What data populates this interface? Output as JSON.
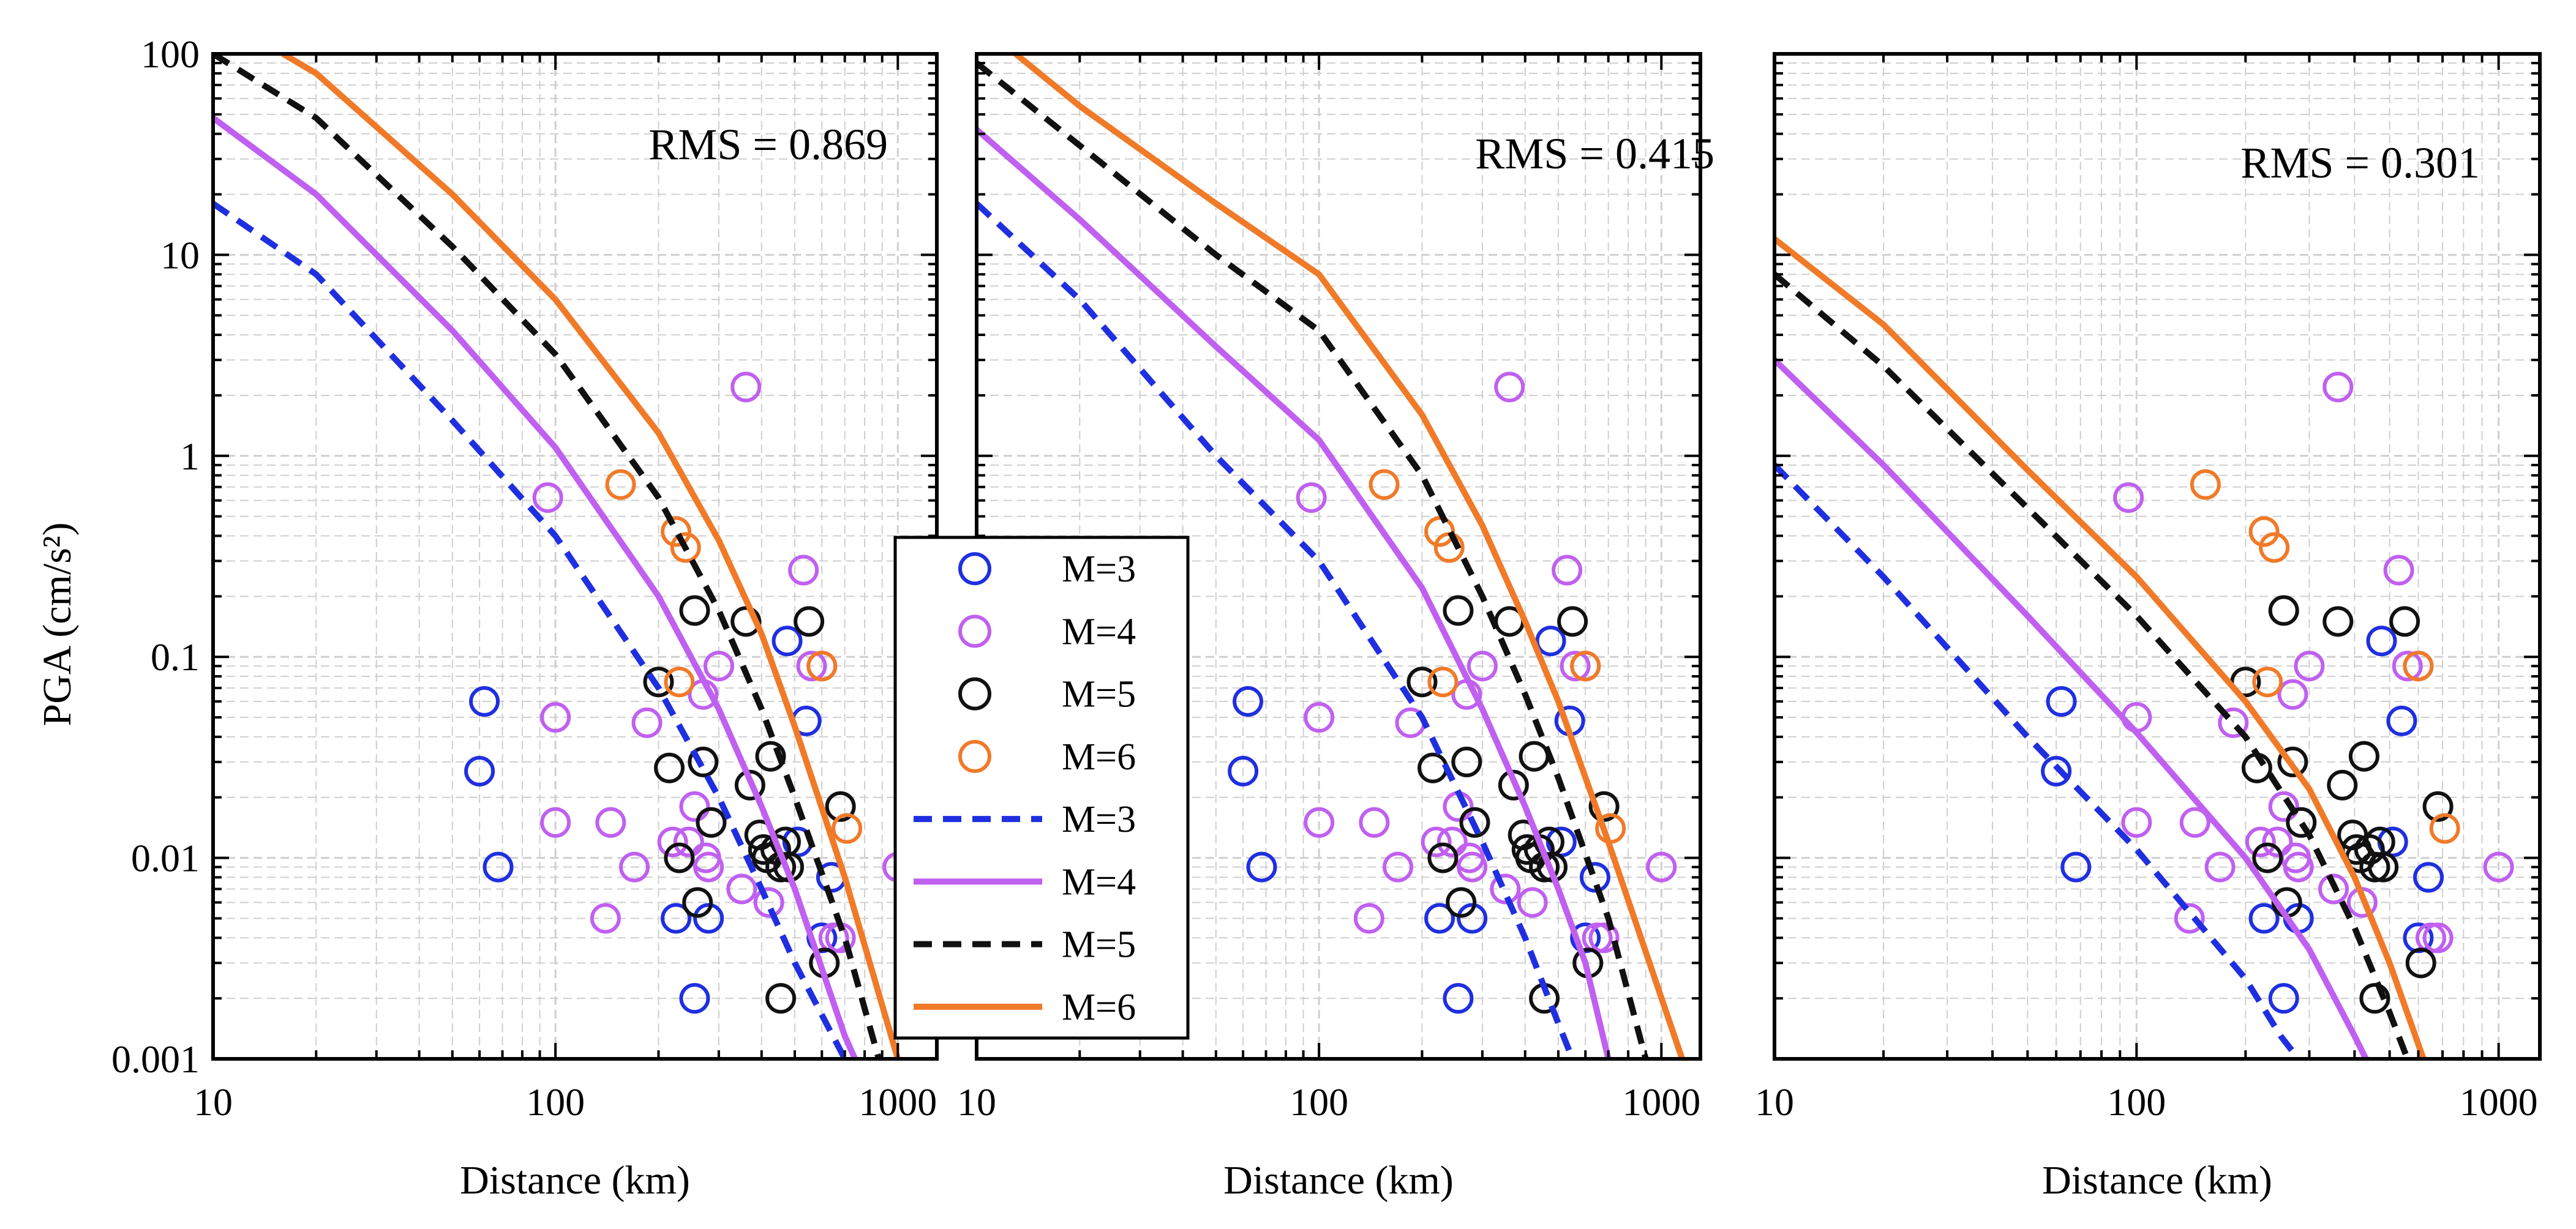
{
  "chart_data": {
    "type": "scatter",
    "figure": {
      "ylabel": "PGA (cm/s²)",
      "xlabel": "Distance (km)"
    },
    "colors": {
      "M3": "#1f2fe0",
      "M4": "#c060f0",
      "M5": "#111111",
      "M6": "#f07a28"
    },
    "legend": {
      "position": "between-panels-bottom",
      "entries": [
        {
          "label": "M=3",
          "marker": "circle",
          "series": "M3"
        },
        {
          "label": "M=4",
          "marker": "circle",
          "series": "M4"
        },
        {
          "label": "M=5",
          "marker": "circle",
          "series": "M5"
        },
        {
          "label": "M=6",
          "marker": "circle",
          "series": "M6"
        },
        {
          "label": "M=3",
          "marker": "dashed-line",
          "series": "M3"
        },
        {
          "label": "M=4",
          "marker": "solid-line",
          "series": "M4"
        },
        {
          "label": "M=5",
          "marker": "dashed-line",
          "series": "M5"
        },
        {
          "label": "M=6",
          "marker": "solid-line",
          "series": "M6"
        }
      ]
    },
    "observations": {
      "M3": [
        [
          62,
          0.06
        ],
        [
          60,
          0.027
        ],
        [
          68,
          0.009
        ],
        [
          225,
          0.005
        ],
        [
          255,
          0.002
        ],
        [
          280,
          0.005
        ],
        [
          475,
          0.12
        ],
        [
          510,
          0.012
        ],
        [
          540,
          0.048
        ],
        [
          600,
          0.004
        ],
        [
          640,
          0.008
        ]
      ],
      "M4": [
        [
          95,
          0.62
        ],
        [
          100,
          0.05
        ],
        [
          100,
          0.015
        ],
        [
          140,
          0.005
        ],
        [
          145,
          0.015
        ],
        [
          170,
          0.009
        ],
        [
          185,
          0.047
        ],
        [
          220,
          0.012
        ],
        [
          245,
          0.012
        ],
        [
          255,
          0.018
        ],
        [
          270,
          0.065
        ],
        [
          275,
          0.01
        ],
        [
          280,
          0.009
        ],
        [
          300,
          0.09
        ],
        [
          350,
          0.007
        ],
        [
          360,
          2.2
        ],
        [
          420,
          0.006
        ],
        [
          530,
          0.27
        ],
        [
          560,
          0.09
        ],
        [
          600,
          0.09
        ],
        [
          650,
          0.004
        ],
        [
          680,
          0.004
        ],
        [
          1000,
          0.009
        ]
      ],
      "M5": [
        [
          200,
          0.075
        ],
        [
          215,
          0.028
        ],
        [
          230,
          0.01
        ],
        [
          255,
          0.17
        ],
        [
          260,
          0.006
        ],
        [
          270,
          0.03
        ],
        [
          285,
          0.015
        ],
        [
          360,
          0.15
        ],
        [
          370,
          0.023
        ],
        [
          395,
          0.013
        ],
        [
          405,
          0.011
        ],
        [
          415,
          0.01
        ],
        [
          425,
          0.032
        ],
        [
          440,
          0.011
        ],
        [
          455,
          0.009
        ],
        [
          470,
          0.012
        ],
        [
          480,
          0.009
        ],
        [
          455,
          0.002
        ],
        [
          550,
          0.15
        ],
        [
          610,
          0.003
        ],
        [
          680,
          0.018
        ]
      ],
      "M6": [
        [
          155,
          0.72
        ],
        [
          225,
          0.42
        ],
        [
          240,
          0.35
        ],
        [
          230,
          0.075
        ],
        [
          600,
          0.09
        ],
        [
          710,
          0.014
        ]
      ]
    },
    "axes": {
      "xscale": "log",
      "yscale": "log",
      "xlim": [
        10,
        1300
      ],
      "ylim": [
        0.001,
        100
      ],
      "xticks": [
        "10",
        "100",
        "1000"
      ],
      "yticks": [
        "0.001",
        "0.01",
        "0.1",
        "1",
        "10",
        "100"
      ],
      "grid": true
    },
    "panels": [
      {
        "rms_label": "RMS = 0.869",
        "curves": {
          "M3": [
            [
              10,
              18
            ],
            [
              20,
              8
            ],
            [
              50,
              1.5
            ],
            [
              100,
              0.4
            ],
            [
              200,
              0.07
            ],
            [
              300,
              0.02
            ],
            [
              400,
              0.007
            ],
            [
              500,
              0.003
            ],
            [
              700,
              0.001
            ]
          ],
          "M4": [
            [
              10,
              48
            ],
            [
              20,
              20
            ],
            [
              50,
              4.2
            ],
            [
              100,
              1.1
            ],
            [
              200,
              0.2
            ],
            [
              300,
              0.055
            ],
            [
              400,
              0.018
            ],
            [
              500,
              0.007
            ],
            [
              700,
              0.0013
            ],
            [
              750,
              0.001
            ]
          ],
          "M5": [
            [
              10,
              100
            ],
            [
              20,
              48
            ],
            [
              50,
              11
            ],
            [
              100,
              3.2
            ],
            [
              200,
              0.62
            ],
            [
              300,
              0.17
            ],
            [
              400,
              0.055
            ],
            [
              500,
              0.02
            ],
            [
              700,
              0.004
            ],
            [
              880,
              0.001
            ]
          ],
          "M6": [
            [
              16,
              100
            ],
            [
              20,
              80
            ],
            [
              50,
              20
            ],
            [
              100,
              6
            ],
            [
              200,
              1.3
            ],
            [
              300,
              0.38
            ],
            [
              400,
              0.13
            ],
            [
              500,
              0.045
            ],
            [
              700,
              0.008
            ],
            [
              1000,
              0.001
            ]
          ]
        }
      },
      {
        "rms_label": "RMS = 0.415",
        "curves": {
          "M3": [
            [
              10,
              18
            ],
            [
              20,
              6
            ],
            [
              50,
              1.0
            ],
            [
              100,
              0.3
            ],
            [
              200,
              0.05
            ],
            [
              300,
              0.012
            ],
            [
              400,
              0.004
            ],
            [
              500,
              0.0015
            ],
            [
              550,
              0.001
            ]
          ],
          "M4": [
            [
              10,
              42
            ],
            [
              20,
              15
            ],
            [
              50,
              3.5
            ],
            [
              100,
              1.2
            ],
            [
              200,
              0.22
            ],
            [
              300,
              0.055
            ],
            [
              400,
              0.018
            ],
            [
              500,
              0.007
            ],
            [
              600,
              0.003
            ],
            [
              700,
              0.001
            ]
          ],
          "M5": [
            [
              10,
              90
            ],
            [
              20,
              35
            ],
            [
              50,
              10
            ],
            [
              100,
              4.2
            ],
            [
              200,
              0.8
            ],
            [
              300,
              0.2
            ],
            [
              400,
              0.065
            ],
            [
              500,
              0.025
            ],
            [
              700,
              0.005
            ],
            [
              900,
              0.001
            ]
          ],
          "M6": [
            [
              13,
              100
            ],
            [
              20,
              55
            ],
            [
              50,
              18
            ],
            [
              100,
              8
            ],
            [
              200,
              1.6
            ],
            [
              300,
              0.45
            ],
            [
              400,
              0.15
            ],
            [
              500,
              0.06
            ],
            [
              700,
              0.012
            ],
            [
              1150,
              0.001
            ]
          ]
        }
      },
      {
        "rms_label": "RMS = 0.301",
        "curves": {
          "M3": [
            [
              10,
              0.9
            ],
            [
              20,
              0.25
            ],
            [
              50,
              0.04
            ],
            [
              100,
              0.011
            ],
            [
              200,
              0.0025
            ],
            [
              250,
              0.0013
            ],
            [
              280,
              0.001
            ]
          ],
          "M4": [
            [
              10,
              3
            ],
            [
              20,
              0.9
            ],
            [
              50,
              0.16
            ],
            [
              100,
              0.042
            ],
            [
              200,
              0.01
            ],
            [
              300,
              0.0035
            ],
            [
              400,
              0.0013
            ],
            [
              430,
              0.001
            ]
          ],
          "M5": [
            [
              10,
              8
            ],
            [
              20,
              2.8
            ],
            [
              50,
              0.55
            ],
            [
              100,
              0.16
            ],
            [
              200,
              0.04
            ],
            [
              300,
              0.013
            ],
            [
              400,
              0.0045
            ],
            [
              500,
              0.0017
            ],
            [
              560,
              0.001
            ]
          ],
          "M6": [
            [
              10,
              12
            ],
            [
              20,
              4.5
            ],
            [
              50,
              0.85
            ],
            [
              100,
              0.25
            ],
            [
              200,
              0.06
            ],
            [
              300,
              0.022
            ],
            [
              400,
              0.008
            ],
            [
              500,
              0.003
            ],
            [
              620,
              0.001
            ]
          ]
        }
      }
    ]
  }
}
